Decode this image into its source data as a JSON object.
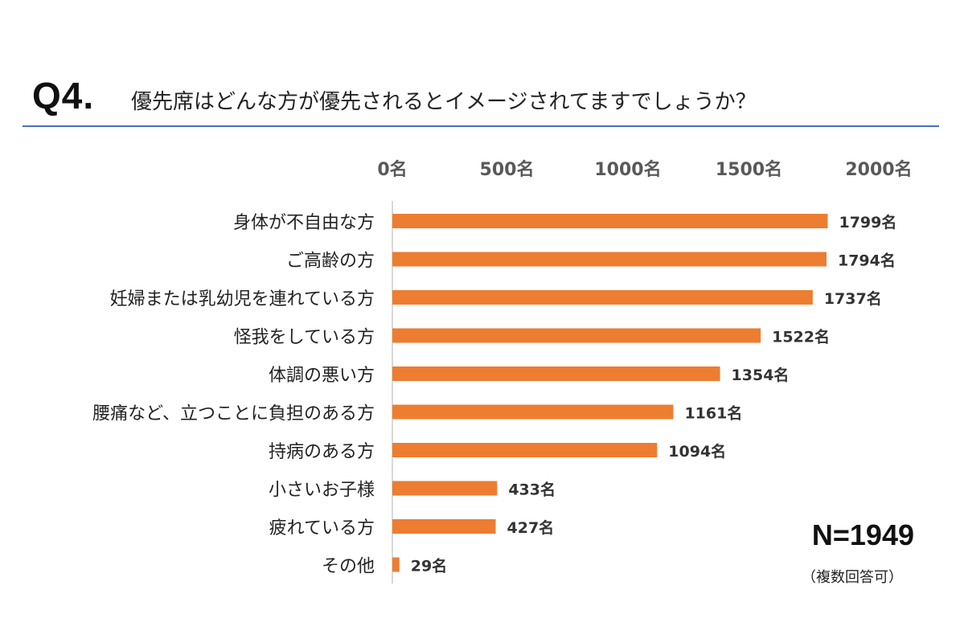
{
  "heading": {
    "q_label": "Q4.",
    "question": "優先席はどんな方が優先されるとイメージされてますでしょうか？"
  },
  "chart_data": {
    "type": "bar",
    "orientation": "horizontal",
    "categories": [
      "身体が不自由な方",
      "ご高齢の方",
      "妊婦または乳幼児を連れている方",
      "怪我をしている方",
      "体調の悪い方",
      "腰痛など、立つことに負担のある方",
      "持病のある方",
      "小さいお子様",
      "疲れている方",
      "その他"
    ],
    "values": [
      1799,
      1794,
      1737,
      1522,
      1354,
      1161,
      1094,
      433,
      427,
      29
    ],
    "value_labels": [
      "1799名",
      "1794名",
      "1737名",
      "1522名",
      "1354名",
      "1161名",
      "1094名",
      "433名",
      "427名",
      "29名"
    ],
    "xlim": [
      0,
      2000
    ],
    "x_ticks": [
      0,
      500,
      1000,
      1500,
      2000
    ],
    "x_tick_labels": [
      "0名",
      "500名",
      "1000名",
      "1500名",
      "2000名"
    ],
    "bar_color": "#ed7d31",
    "axis_color": "#d9d9d9",
    "tick_label_color": "#595959",
    "grid": false,
    "legend": "none"
  },
  "sample": {
    "n_label": "N=1949",
    "note": "（複数回答可）"
  }
}
